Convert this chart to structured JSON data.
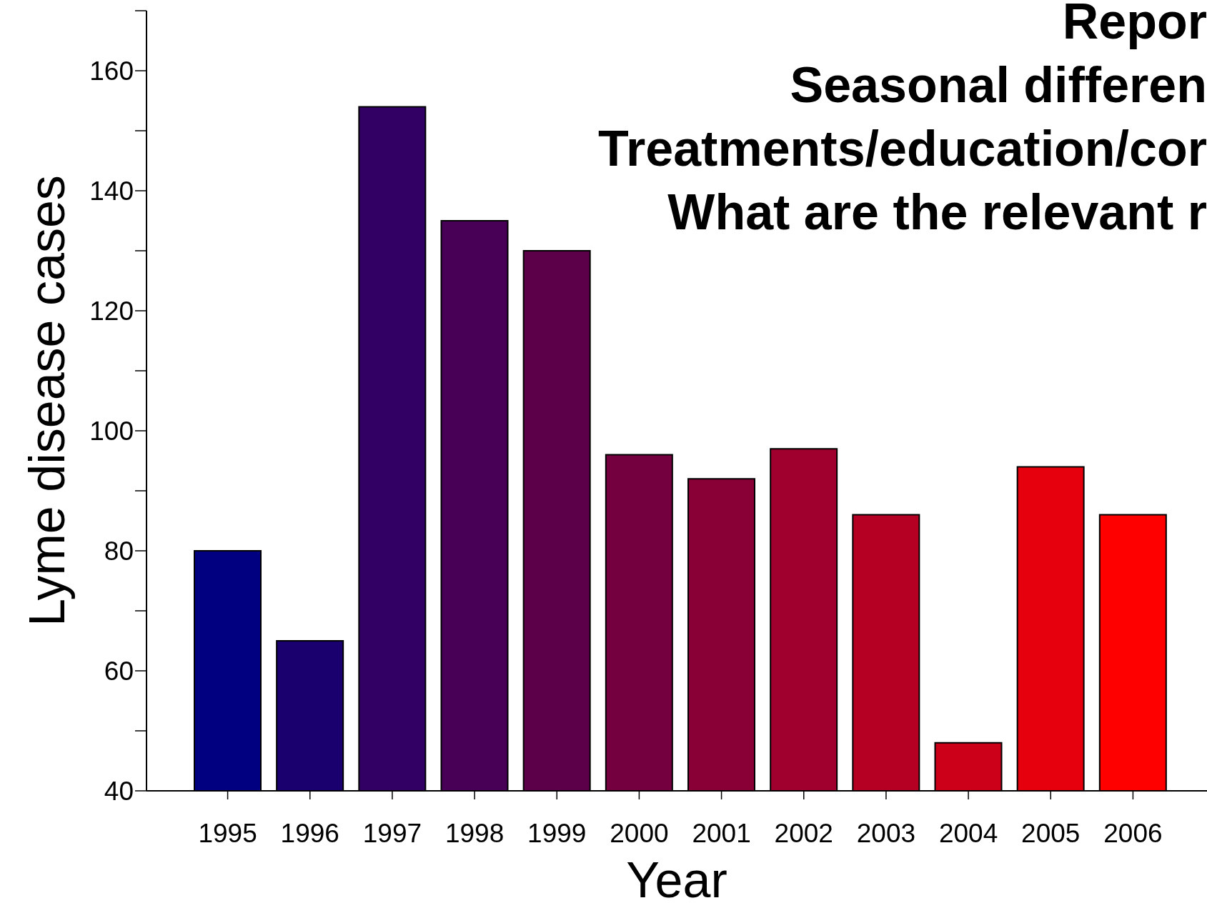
{
  "chart_data": {
    "type": "bar",
    "xlabel": "Year",
    "ylabel": "Lyme disease cases",
    "annotations": [
      "Repor",
      "Seasonal differen",
      "Treatments/education/cor",
      "What are the relevant r"
    ],
    "categories": [
      "1995",
      "1996",
      "1997",
      "1998",
      "1999",
      "2000",
      "2001",
      "2002",
      "2003",
      "2004",
      "2005",
      "2006"
    ],
    "values": [
      80,
      65,
      154,
      135,
      130,
      96,
      92,
      97,
      86,
      48,
      94,
      86
    ],
    "colors": [
      "#000080",
      "#1a006e",
      "#320064",
      "#470055",
      "#5c004a",
      "#740040",
      "#890036",
      "#a0002d",
      "#b50023",
      "#cc0019",
      "#e6000e",
      "#ff0000"
    ],
    "ylim": [
      40,
      170
    ],
    "yticks": [
      40,
      {
        "value": 50,
        "label": null
      },
      60,
      {
        "value": 70,
        "label": null
      },
      80,
      {
        "value": 90,
        "label": null
      },
      100,
      {
        "value": 110,
        "label": null
      },
      120,
      {
        "value": 130,
        "label": null
      },
      140,
      {
        "value": 150,
        "label": null
      },
      160,
      {
        "value": 170,
        "label": null
      }
    ],
    "grid": false,
    "legend": false
  }
}
